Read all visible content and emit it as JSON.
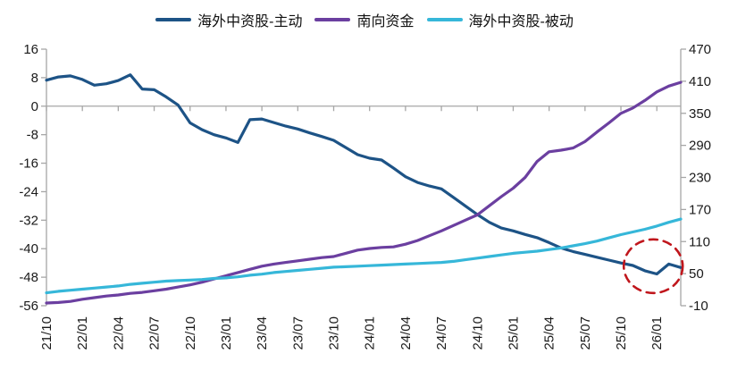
{
  "chart_data": {
    "type": "line",
    "title": "",
    "legend_position": "top-center",
    "colors": {
      "grid": "#a6a6a6",
      "axis": "#a6a6a6",
      "tick_text": "#1a1a1a"
    },
    "months": [
      "21/10",
      "21/11",
      "21/12",
      "22/01",
      "22/02",
      "22/03",
      "22/04",
      "22/05",
      "22/06",
      "22/07",
      "22/08",
      "22/09",
      "22/10",
      "22/11",
      "22/12",
      "23/01",
      "23/02",
      "23/03",
      "23/04",
      "23/05",
      "23/06",
      "23/07",
      "23/08",
      "23/09",
      "23/10",
      "23/11",
      "23/12",
      "24/01",
      "24/02",
      "24/03",
      "24/04",
      "24/05",
      "24/06",
      "24/07",
      "24/08",
      "24/09",
      "24/10",
      "24/11",
      "24/12",
      "25/01",
      "25/02",
      "25/03",
      "25/04",
      "25/05",
      "25/06",
      "25/07",
      "25/08",
      "25/09",
      "25/10",
      "25/11",
      "25/12",
      "26/01",
      "26/02",
      "26/03"
    ],
    "x_tick_labels": [
      "21/10",
      "22/01",
      "22/04",
      "22/07",
      "22/10",
      "23/01",
      "23/04",
      "23/07",
      "23/10",
      "24/01",
      "24/04",
      "24/07",
      "24/10",
      "25/01",
      "25/04",
      "25/07",
      "25/10",
      "26/01"
    ],
    "x_tick_every_n_months": 3,
    "left_axis": {
      "max": 16,
      "min": -56,
      "ticks": [
        16,
        8,
        0,
        -8,
        -16,
        -24,
        -32,
        -40,
        -48,
        -56
      ]
    },
    "right_axis": {
      "max": 470,
      "min": -10,
      "ticks": [
        470,
        410,
        350,
        290,
        230,
        170,
        110,
        50,
        -10
      ]
    },
    "gridlines_left_values": [
      0
    ],
    "series": [
      {
        "id": "active",
        "name": "海外中资股-主动",
        "axis": "left",
        "color": "#1d5386",
        "values": [
          7.3,
          8.2,
          8.5,
          7.5,
          5.9,
          6.3,
          7.2,
          8.8,
          4.8,
          4.6,
          2.6,
          0.3,
          -4.7,
          -6.6,
          -8.0,
          -8.9,
          -10.2,
          -3.8,
          -3.6,
          -4.6,
          -5.6,
          -6.4,
          -7.5,
          -8.5,
          -9.6,
          -11.6,
          -13.6,
          -14.6,
          -15.1,
          -17.4,
          -19.8,
          -21.4,
          -22.4,
          -23.2,
          -25.6,
          -28.0,
          -30.4,
          -32.6,
          -34.2,
          -35.0,
          -36.0,
          -36.9,
          -38.3,
          -39.8,
          -40.8,
          -41.6,
          -42.4,
          -43.2,
          -44.0,
          -44.7,
          -46.2,
          -47.1,
          -44.3,
          -45.3
        ]
      },
      {
        "id": "southbound",
        "name": "南向资金",
        "axis": "right",
        "color": "#6b3fa0",
        "values": [
          -5,
          -4,
          -2,
          2,
          5,
          8,
          10,
          13,
          15,
          18,
          21,
          25,
          29,
          34,
          40,
          46,
          52,
          58,
          64,
          68,
          71,
          74,
          77,
          80,
          82,
          88,
          94,
          97,
          99,
          100,
          105,
          112,
          121,
          130,
          140,
          150,
          160,
          177,
          194,
          210,
          230,
          260,
          278,
          281,
          285,
          297,
          315,
          332,
          350,
          360,
          374,
          390,
          401,
          408
        ]
      },
      {
        "id": "passive",
        "name": "海外中资股-被动",
        "axis": "right",
        "color": "#36b7d9",
        "values": [
          14,
          17,
          19,
          21,
          23,
          25,
          27,
          30,
          32,
          34,
          36,
          37,
          38,
          39,
          41,
          42,
          44,
          47,
          49,
          52,
          54,
          56,
          58,
          60,
          62,
          63,
          64,
          65,
          66,
          67,
          68,
          69,
          70,
          71,
          73,
          76,
          79,
          82,
          85,
          88,
          90,
          92,
          95,
          98,
          102,
          106,
          111,
          117,
          123,
          128,
          133,
          139,
          146,
          152
        ]
      }
    ],
    "annotation": {
      "shape": "dashed-ellipse",
      "color": "#c0161c",
      "center_month": "26/01",
      "center_month_index": 50.7,
      "center_value_left": -44.9
    }
  }
}
